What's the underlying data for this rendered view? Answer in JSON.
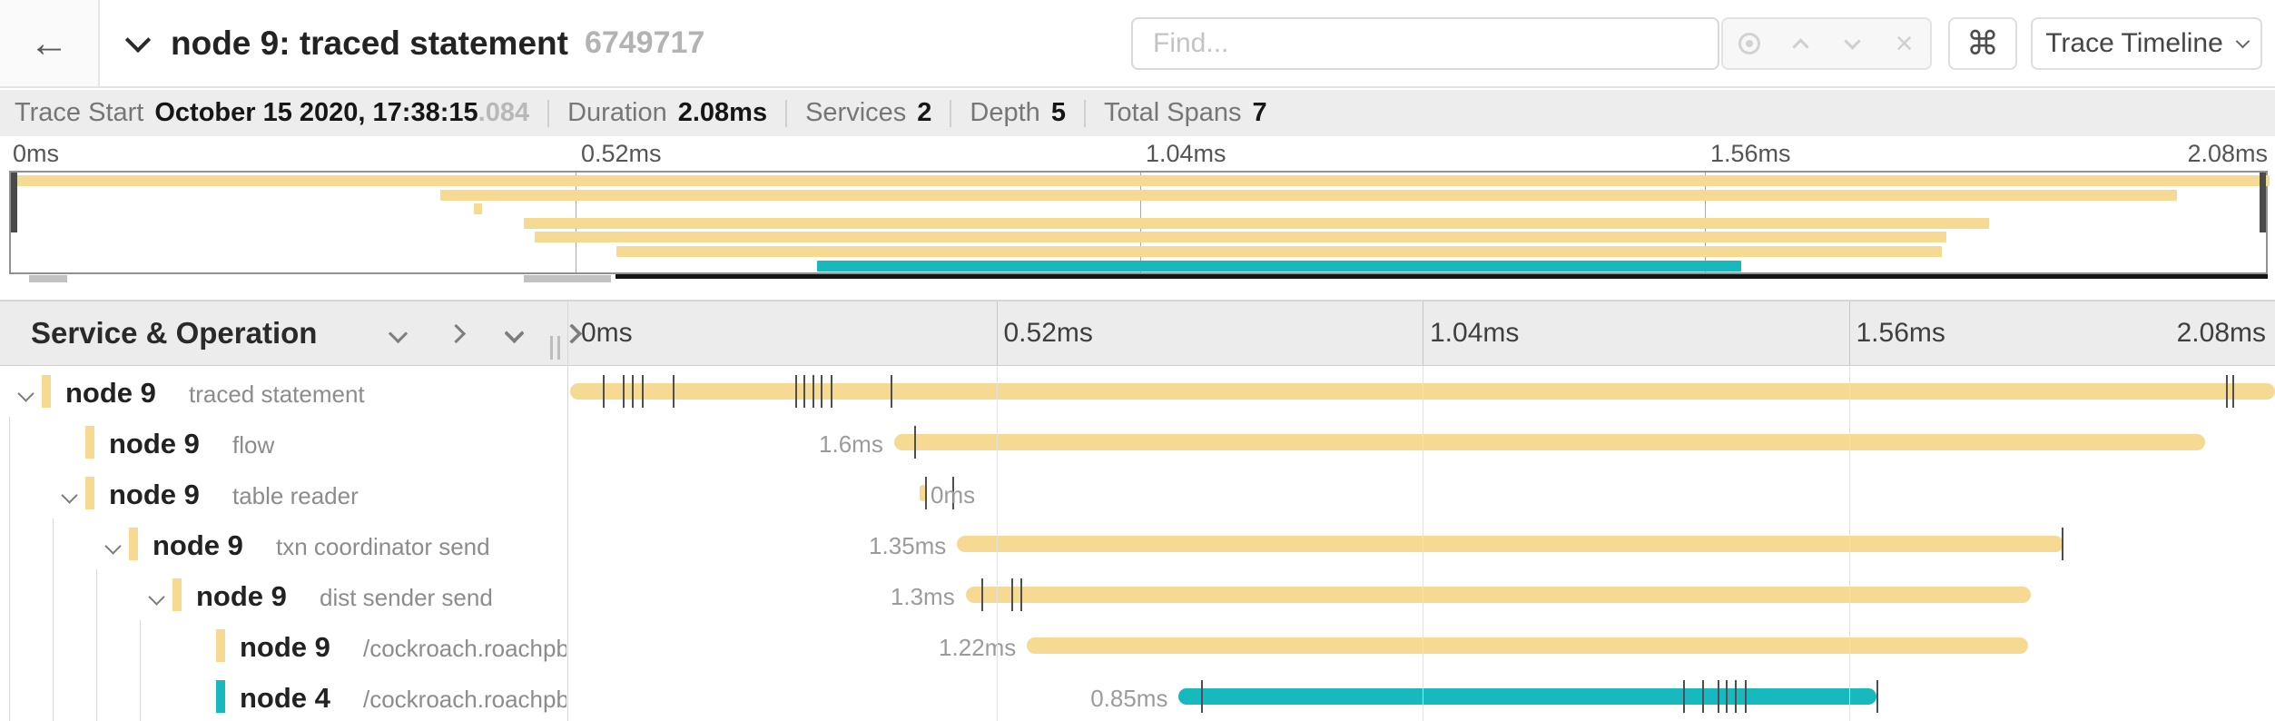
{
  "header": {
    "back_icon": "←",
    "title": "node 9: traced statement",
    "trace_id": "6749717",
    "find": {
      "placeholder": "Find...",
      "clear_icon": "×"
    },
    "shortcut_icon": "⌘",
    "view_dropdown": {
      "label": "Trace Timeline"
    }
  },
  "summary": {
    "items": [
      {
        "label": "Trace Start",
        "value": "October 15 2020, 17:38:15",
        "suffix": ".084"
      },
      {
        "label": "Duration",
        "value": "2.08ms",
        "suffix": ""
      },
      {
        "label": "Services",
        "value": "2",
        "suffix": ""
      },
      {
        "label": "Depth",
        "value": "5",
        "suffix": ""
      },
      {
        "label": "Total Spans",
        "value": "7",
        "suffix": ""
      }
    ]
  },
  "colors": {
    "tan": "#F6D992",
    "teal": "#17B8BE"
  },
  "timeline": {
    "left_header": "Service & Operation",
    "ticks": [
      "0ms",
      "0.52ms",
      "1.04ms",
      "1.56ms",
      "2.08ms"
    ],
    "duration_total": "2.08ms",
    "spans": [
      {
        "service": "node 9",
        "operation": "traced statement",
        "depth": 0,
        "expandable": true,
        "color": "#F6D992",
        "start_pct": 0,
        "width_pct": 100,
        "duration_label": "",
        "label_position": "none",
        "ticks_pct": [
          1.9,
          3.1,
          3.6,
          4.2,
          6.0,
          13.2,
          13.7,
          14.2,
          14.7,
          15.3,
          18.8,
          97.1,
          97.5
        ]
      },
      {
        "service": "node 9",
        "operation": "flow",
        "depth": 1,
        "expandable": false,
        "color": "#F6D992",
        "start_pct": 19.0,
        "width_pct": 76.9,
        "duration_label": "1.6ms",
        "label_position": "left",
        "ticks_pct": [
          20.2
        ]
      },
      {
        "service": "node 9",
        "operation": "table reader",
        "depth": 1,
        "expandable": true,
        "color": "#F6D992",
        "start_pct": 20.5,
        "width_pct": 0.35,
        "duration_label": "0ms",
        "label_position": "right",
        "ticks_pct": [
          20.8,
          22.4
        ]
      },
      {
        "service": "node 9",
        "operation": "txn coordinator send",
        "depth": 2,
        "expandable": true,
        "color": "#F6D992",
        "start_pct": 22.7,
        "width_pct": 64.9,
        "duration_label": "1.35ms",
        "label_position": "left",
        "ticks_pct": [
          87.5
        ]
      },
      {
        "service": "node 9",
        "operation": "dist sender send",
        "depth": 3,
        "expandable": true,
        "color": "#F6D992",
        "start_pct": 23.2,
        "width_pct": 62.5,
        "duration_label": "1.3ms",
        "label_position": "left",
        "ticks_pct": [
          24.1,
          25.9,
          26.4
        ]
      },
      {
        "service": "node 9",
        "operation": "/cockroach.roachpb.I...",
        "depth": 4,
        "expandable": false,
        "color": "#F6D992",
        "start_pct": 26.8,
        "width_pct": 58.7,
        "duration_label": "1.22ms",
        "label_position": "left",
        "ticks_pct": []
      },
      {
        "service": "node 4",
        "operation": "/cockroach.roachpb.I...",
        "depth": 4,
        "expandable": false,
        "color": "#17B8BE",
        "start_pct": 35.7,
        "width_pct": 40.9,
        "duration_label": "0.85ms",
        "label_position": "left",
        "ticks_pct": [
          37.0,
          65.3,
          66.4,
          67.3,
          67.8,
          68.3,
          68.9,
          76.6
        ]
      }
    ]
  },
  "minimap": {
    "ticks": [
      "0ms",
      "0.52ms",
      "1.04ms",
      "1.56ms",
      "2.08ms"
    ]
  }
}
